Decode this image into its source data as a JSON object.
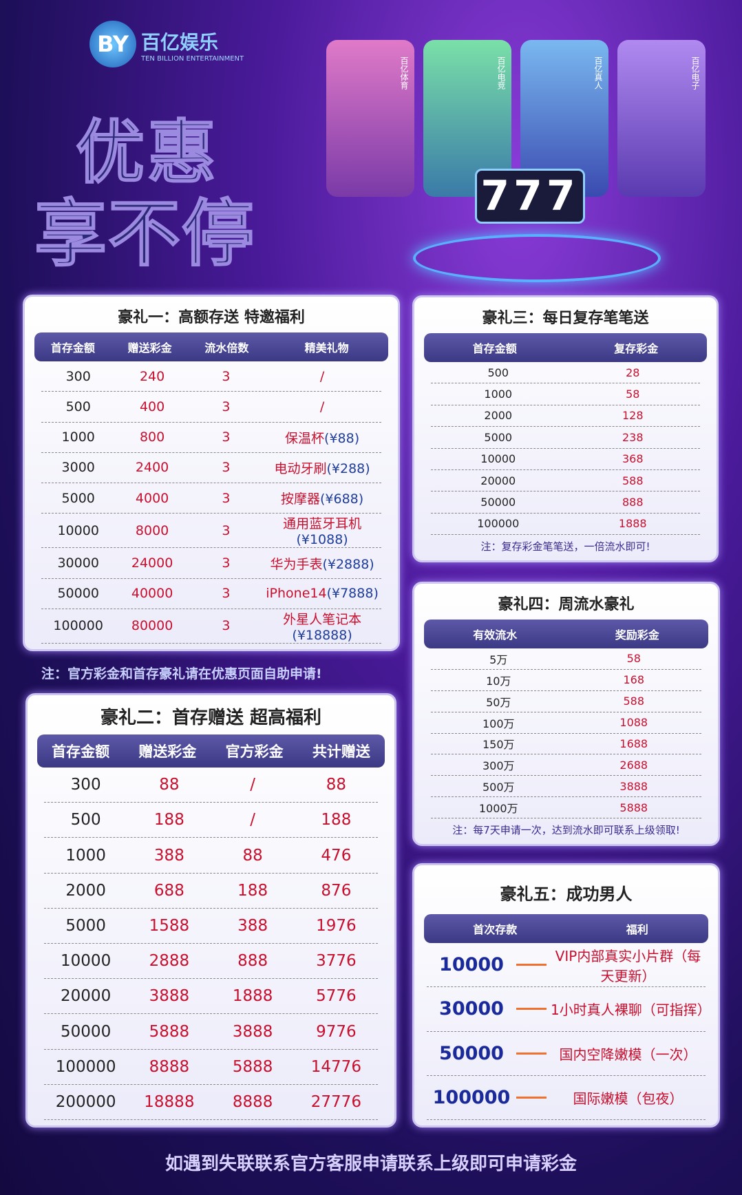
{
  "header": {
    "logo": "BY",
    "brand": "百亿娱乐",
    "brand_en": "TEN BILLION ENTERTAINMENT",
    "headline": [
      "优惠",
      "享不停"
    ],
    "tabs": [
      "百亿体育",
      "百亿电竞",
      "百亿真人",
      "百亿电子"
    ],
    "slot": "777"
  },
  "panel1": {
    "title": "豪礼一：高额存送 特邀福利",
    "headers": [
      "首存金额",
      "赠送彩金",
      "流水倍数",
      "精美礼物"
    ],
    "rows": [
      [
        "300",
        "240",
        "3",
        "/"
      ],
      [
        "500",
        "400",
        "3",
        "/"
      ],
      [
        "1000",
        "800",
        "3",
        {
          "name": "保温杯",
          "price": "(¥88)"
        }
      ],
      [
        "3000",
        "2400",
        "3",
        {
          "name": "电动牙刷",
          "price": "(¥288)"
        }
      ],
      [
        "5000",
        "4000",
        "3",
        {
          "name": "按摩器",
          "price": "(¥688)"
        }
      ],
      [
        "10000",
        "8000",
        "3",
        {
          "name": "通用蓝牙耳机",
          "price": "(¥1088)"
        }
      ],
      [
        "30000",
        "24000",
        "3",
        {
          "name": "华为手表",
          "price": "(¥2888)"
        }
      ],
      [
        "50000",
        "40000",
        "3",
        {
          "name": "iPhone14",
          "price": "(¥7888)"
        }
      ],
      [
        "100000",
        "80000",
        "3",
        {
          "name": "外星人笔记本",
          "price": "(¥18888)"
        }
      ]
    ]
  },
  "note1": "注：官方彩金和首存豪礼请在优惠页面自助申请!",
  "panel2": {
    "title": "豪礼二：首存赠送 超高福利",
    "headers": [
      "首存金额",
      "赠送彩金",
      "官方彩金",
      "共计赠送"
    ],
    "rows": [
      [
        "300",
        "88",
        "/",
        "88"
      ],
      [
        "500",
        "188",
        "/",
        "188"
      ],
      [
        "1000",
        "388",
        "88",
        "476"
      ],
      [
        "2000",
        "688",
        "188",
        "876"
      ],
      [
        "5000",
        "1588",
        "388",
        "1976"
      ],
      [
        "10000",
        "2888",
        "888",
        "3776"
      ],
      [
        "20000",
        "3888",
        "1888",
        "5776"
      ],
      [
        "50000",
        "5888",
        "3888",
        "9776"
      ],
      [
        "100000",
        "8888",
        "5888",
        "14776"
      ],
      [
        "200000",
        "18888",
        "8888",
        "27776"
      ]
    ]
  },
  "panel3": {
    "title": "豪礼三：每日复存笔笔送",
    "headers": [
      "首存金额",
      "复存彩金"
    ],
    "rows": [
      [
        "500",
        "28"
      ],
      [
        "1000",
        "58"
      ],
      [
        "2000",
        "128"
      ],
      [
        "5000",
        "238"
      ],
      [
        "10000",
        "368"
      ],
      [
        "20000",
        "588"
      ],
      [
        "50000",
        "888"
      ],
      [
        "100000",
        "1888"
      ]
    ],
    "note": "注：复存彩金笔笔送，一倍流水即可!"
  },
  "panel4": {
    "title": "豪礼四：周流水豪礼",
    "headers": [
      "有效流水",
      "奖励彩金"
    ],
    "rows": [
      [
        "5万",
        "58"
      ],
      [
        "10万",
        "168"
      ],
      [
        "50万",
        "588"
      ],
      [
        "100万",
        "1088"
      ],
      [
        "150万",
        "1688"
      ],
      [
        "300万",
        "2688"
      ],
      [
        "500万",
        "3888"
      ],
      [
        "1000万",
        "5888"
      ]
    ],
    "note": "注：每7天申请一次，达到流水即可联系上级领取!"
  },
  "panel5": {
    "title": "豪礼五：成功男人",
    "headers": [
      "首次存款",
      "福利"
    ],
    "rows": [
      [
        "10000",
        "VIP内部真实小片群（每天更新）"
      ],
      [
        "30000",
        "1小时真人裸聊（可指挥）"
      ],
      [
        "50000",
        "国内空降嫩模（一次）"
      ],
      [
        "100000",
        "国际嫩模（包夜）"
      ]
    ]
  },
  "footer": "如遇到失联联系官方客服申请联系上级即可申请彩金"
}
